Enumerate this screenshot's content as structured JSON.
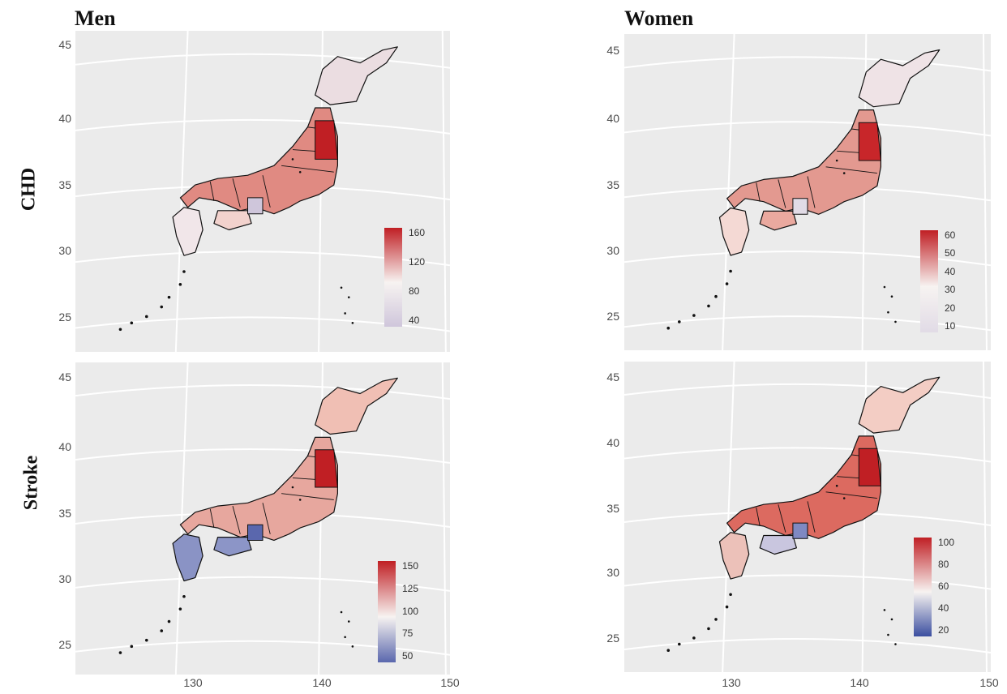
{
  "columns": [
    "Men",
    "Women"
  ],
  "rows": [
    "CHD",
    "Stroke"
  ],
  "latitude_ticks": [
    "45",
    "40",
    "35",
    "30",
    "25"
  ],
  "longitude_ticks": [
    "130",
    "140",
    "150"
  ],
  "palette": {
    "panel_bg": "#ebebeb",
    "grid": "#ffffff",
    "outline": "#111111",
    "low": "#3b4ea0",
    "mid": "#f7f3f1",
    "high": "#c01f24",
    "faint_low": "#cfc6db"
  },
  "panels": [
    {
      "id": "men-chd",
      "row": "CHD",
      "column": "Men",
      "legend": {
        "ticks": [
          "160",
          "120",
          "80",
          "40"
        ],
        "min_color": "#cfc6db",
        "max_color": "#c01f24"
      }
    },
    {
      "id": "women-chd",
      "row": "CHD",
      "column": "Women",
      "legend": {
        "ticks": [
          "60",
          "50",
          "40",
          "30",
          "20",
          "10"
        ],
        "min_color": "#e1dbe6",
        "max_color": "#c01f24"
      }
    },
    {
      "id": "men-stroke",
      "row": "Stroke",
      "column": "Men",
      "legend": {
        "ticks": [
          "150",
          "125",
          "100",
          "75",
          "50"
        ],
        "min_color": "#5a67ad",
        "max_color": "#c01f24"
      }
    },
    {
      "id": "women-stroke",
      "row": "Stroke",
      "column": "Women",
      "legend": {
        "ticks": [
          "100",
          "80",
          "60",
          "40",
          "20"
        ],
        "min_color": "#3b4ea0",
        "max_color": "#c01f24"
      }
    }
  ]
}
